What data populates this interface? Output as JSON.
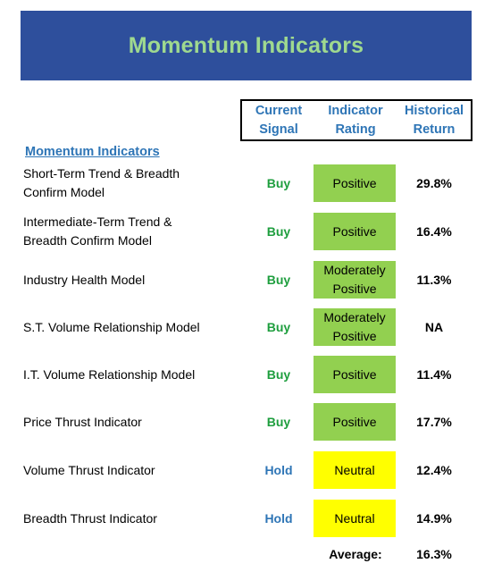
{
  "banner": {
    "title": "Momentum Indicators",
    "background": "#2e4f9c",
    "title_color": "#9fd98f"
  },
  "headers": {
    "signal": [
      "Current",
      "Signal"
    ],
    "rating": [
      "Indicator",
      "Rating"
    ],
    "return": [
      "Historical",
      "Return"
    ]
  },
  "section_title": "Momentum Indicators",
  "colors": {
    "buy": "#1e9e3e",
    "hold": "#2e75b6",
    "positive_fill": "#92d050",
    "neutral_fill": "#ffff00",
    "header_text": "#2e75b6"
  },
  "rows": [
    {
      "label": [
        "Short-Term Trend & Breadth",
        "Confirm Model"
      ],
      "signal": "Buy",
      "rating": [
        "Positive"
      ],
      "rating_kind": "positive",
      "return": "29.8%"
    },
    {
      "label": [
        "Intermediate-Term Trend &",
        "Breadth Confirm Model"
      ],
      "signal": "Buy",
      "rating": [
        "Positive"
      ],
      "rating_kind": "positive",
      "return": "16.4%"
    },
    {
      "label": [
        "Industry Health Model"
      ],
      "signal": "Buy",
      "rating": [
        "Moderately",
        "Positive"
      ],
      "rating_kind": "positive",
      "return": "11.3%"
    },
    {
      "label": [
        "S.T. Volume Relationship Model"
      ],
      "signal": "Buy",
      "rating": [
        "Moderately",
        "Positive"
      ],
      "rating_kind": "positive",
      "return": "NA"
    },
    {
      "label": [
        "I.T. Volume Relationship Model"
      ],
      "signal": "Buy",
      "rating": [
        "Positive"
      ],
      "rating_kind": "positive",
      "return": "11.4%"
    },
    {
      "label": [
        "Price Thrust Indicator"
      ],
      "signal": "Buy",
      "rating": [
        "Positive"
      ],
      "rating_kind": "positive",
      "return": "17.7%"
    },
    {
      "label": [
        "Volume Thrust Indicator"
      ],
      "signal": "Hold",
      "rating": [
        "Neutral"
      ],
      "rating_kind": "neutral",
      "return": "12.4%"
    },
    {
      "label": [
        "Breadth Thrust Indicator"
      ],
      "signal": "Hold",
      "rating": [
        "Neutral"
      ],
      "rating_kind": "neutral",
      "return": "14.9%"
    }
  ],
  "average": {
    "label": "Average:",
    "value": "16.3%"
  }
}
